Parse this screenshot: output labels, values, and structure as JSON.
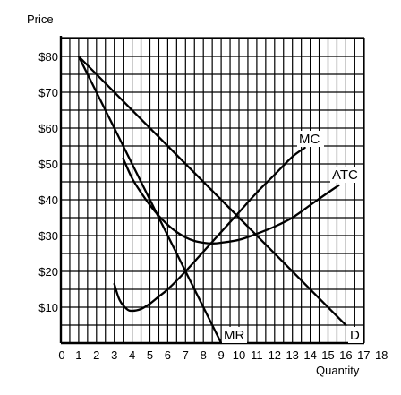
{
  "chart_data": {
    "type": "line",
    "title": "",
    "xlabel": "Quantity",
    "ylabel": "Price",
    "xlim": [
      0,
      17
    ],
    "ylim": [
      0,
      85
    ],
    "x_ticks": [
      0,
      1,
      2,
      3,
      4,
      5,
      6,
      7,
      8,
      9,
      10,
      11,
      12,
      13,
      14,
      15,
      16,
      17,
      18
    ],
    "y_ticks": [
      {
        "value": 10,
        "label": "$10"
      },
      {
        "value": 20,
        "label": "$20"
      },
      {
        "value": 30,
        "label": "$30"
      },
      {
        "value": 40,
        "label": "$40"
      },
      {
        "value": 50,
        "label": "$50"
      },
      {
        "value": 60,
        "label": "$60"
      },
      {
        "value": 70,
        "label": "$70"
      },
      {
        "value": 80,
        "label": "$80"
      }
    ],
    "grid": true,
    "grid_step": {
      "x": 0.5,
      "y": 5
    },
    "series": [
      {
        "name": "D",
        "x": [
          1,
          16
        ],
        "y": [
          80,
          5
        ]
      },
      {
        "name": "MR",
        "x": [
          1,
          9
        ],
        "y": [
          80,
          0
        ]
      },
      {
        "name": "MC",
        "x": [
          3,
          3.3,
          3.7,
          4,
          4.5,
          5,
          5.5,
          6,
          7,
          8,
          9,
          10,
          11,
          12,
          13,
          13.7
        ],
        "y": [
          16.5,
          12,
          9.5,
          9,
          9.5,
          11,
          13,
          15,
          20,
          25.5,
          31,
          36.5,
          42,
          47,
          52,
          54.5
        ]
      },
      {
        "name": "ATC",
        "x": [
          3.5,
          4,
          4.5,
          5,
          5.5,
          6,
          6.5,
          7,
          7.5,
          8,
          8.5,
          9,
          10,
          11,
          12,
          13,
          14,
          15,
          15.6
        ],
        "y": [
          51.5,
          46,
          42,
          38.5,
          35.5,
          33,
          31,
          29.5,
          28.5,
          28,
          27.8,
          28,
          28.8,
          30.5,
          32.5,
          35,
          38.5,
          42,
          44
        ]
      }
    ]
  }
}
